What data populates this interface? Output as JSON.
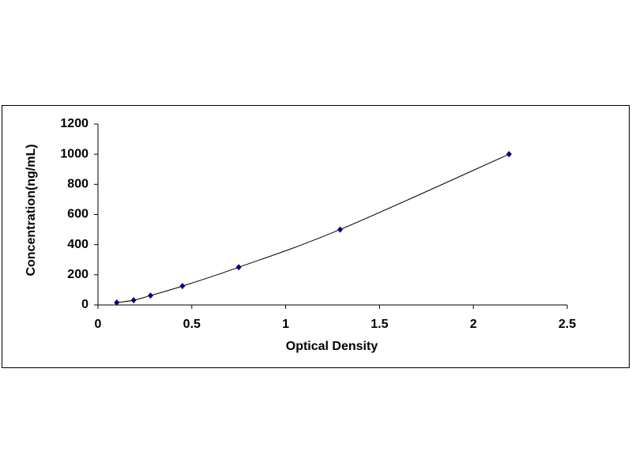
{
  "chart_data": {
    "type": "scatter",
    "xlabel": "Optical Density",
    "ylabel": "Concentration(ng/mL)",
    "x": [
      0.1,
      0.19,
      0.28,
      0.45,
      0.75,
      1.29,
      2.19
    ],
    "series": [
      {
        "values": [
          15.6,
          31.2,
          62.5,
          125,
          250,
          500,
          1000
        ],
        "color": "#000080"
      }
    ],
    "trendline": true,
    "xlim": [
      0,
      2.5
    ],
    "xticks": [
      0,
      0.5,
      1,
      1.5,
      2,
      2.5
    ],
    "ylim": [
      0,
      1200
    ],
    "yticks": [
      0,
      200,
      400,
      600,
      800,
      1000,
      1200
    ],
    "grid": false
  }
}
